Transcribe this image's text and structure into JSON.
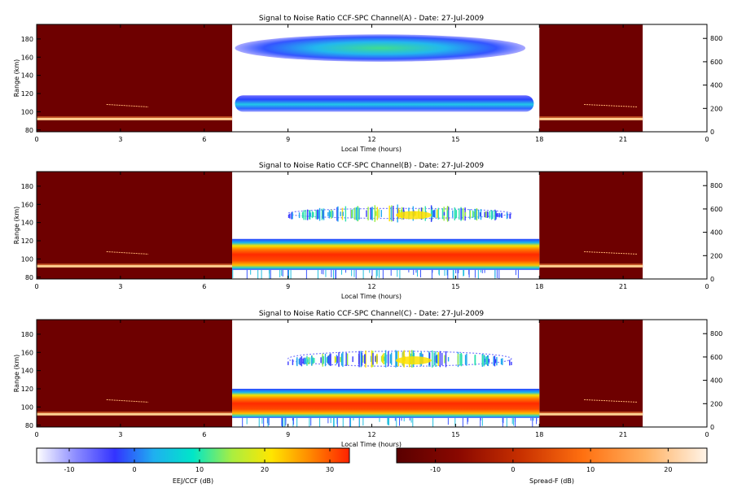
{
  "chart_data": [
    {
      "type": "heatmap",
      "title": "Signal to Noise Ratio CCF-SPC Channel(A) - Date: 27-Jul-2009",
      "xlabel": "Local Time (hours)",
      "ylabel": "Range (km)",
      "xlim": [
        0,
        24
      ],
      "ylim": [
        78,
        196
      ],
      "y2lim": [
        0,
        920
      ],
      "xticks": [
        "0",
        "3",
        "6",
        "9",
        "12",
        "15",
        "18",
        "21",
        "0"
      ],
      "yticks": [
        "80",
        "100",
        "120",
        "140",
        "160",
        "180"
      ],
      "y2ticks": [
        "0",
        "200",
        "400",
        "600",
        "800"
      ],
      "spreadF_night_windows_hours": [
        [
          0,
          7
        ],
        [
          18,
          21.7
        ]
      ],
      "eej_window_hours": [
        7,
        18
      ],
      "night_trace_range_km": [
        92,
        108
      ],
      "layers": [
        {
          "range_km": [
            100,
            118
          ],
          "time_hours": [
            7.1,
            17.8
          ],
          "snr_db": [
            -14,
            10
          ],
          "peak_time_hours": 12.5
        },
        {
          "range_km": [
            155,
            185
          ],
          "time_hours": [
            7.1,
            17.5
          ],
          "snr_db": [
            -14,
            8
          ],
          "peak_time_hours": 12.5
        }
      ]
    },
    {
      "type": "heatmap",
      "title": "Signal to Noise Ratio CCF-SPC Channel(B) - Date: 27-Jul-2009",
      "xlabel": "Local Time (hours)",
      "ylabel": "Range (km)",
      "xlim": [
        0,
        24
      ],
      "ylim": [
        78,
        196
      ],
      "y2lim": [
        0,
        920
      ],
      "xticks": [
        "0",
        "3",
        "6",
        "9",
        "12",
        "15",
        "18",
        "21",
        "0"
      ],
      "yticks": [
        "80",
        "100",
        "120",
        "140",
        "160",
        "180"
      ],
      "y2ticks": [
        "0",
        "200",
        "400",
        "600",
        "800"
      ],
      "spreadF_night_windows_hours": [
        [
          0,
          7
        ],
        [
          18,
          21.7
        ]
      ],
      "eej_window_hours": [
        7,
        18
      ],
      "night_trace_range_km": [
        92,
        108
      ],
      "layers": [
        {
          "range_km": [
            88,
            122
          ],
          "time_hours": [
            7.0,
            18.0
          ],
          "snr_db": [
            -2,
            32
          ],
          "peak_time_hours": 12.5
        },
        {
          "range_km": [
            140,
            160
          ],
          "time_hours": [
            9.0,
            17.0
          ],
          "snr_db": [
            -14,
            20
          ],
          "peak_time_hours": 13.5
        }
      ]
    },
    {
      "type": "heatmap",
      "title": "Signal to Noise Ratio CCF-SPC Channel(C) - Date: 27-Jul-2009",
      "xlabel": "Local Time (hours)",
      "ylabel": "Range (km)",
      "xlim": [
        0,
        24
      ],
      "ylim": [
        78,
        196
      ],
      "y2lim": [
        0,
        920
      ],
      "xticks": [
        "0",
        "3",
        "6",
        "9",
        "12",
        "15",
        "18",
        "21",
        "0"
      ],
      "yticks": [
        "80",
        "100",
        "120",
        "140",
        "160",
        "180"
      ],
      "y2ticks": [
        "0",
        "200",
        "400",
        "600",
        "800"
      ],
      "spreadF_night_windows_hours": [
        [
          0,
          7
        ],
        [
          18,
          21.7
        ]
      ],
      "eej_window_hours": [
        7,
        18
      ],
      "night_trace_range_km": [
        92,
        108
      ],
      "layers": [
        {
          "range_km": [
            88,
            120
          ],
          "time_hours": [
            7.0,
            18.0
          ],
          "snr_db": [
            -2,
            30
          ],
          "peak_time_hours": 12.5
        },
        {
          "range_km": [
            138,
            168
          ],
          "time_hours": [
            9.0,
            17.0
          ],
          "snr_db": [
            -14,
            18
          ],
          "peak_time_hours": 13.5
        }
      ]
    }
  ],
  "colorbars": [
    {
      "label": "EEJ/CCF (dB)",
      "ticks": [
        "-10",
        "0",
        "10",
        "20",
        "30"
      ],
      "range_db": [
        -15,
        33
      ],
      "tick_values": [
        -10,
        0,
        10,
        20,
        30
      ],
      "stops": [
        "#ffffff",
        "#8c8cff",
        "#3333ff",
        "#1fb0f0",
        "#00e6c8",
        "#aaee40",
        "#ffe600",
        "#ff8800",
        "#ff2200"
      ]
    },
    {
      "label": "Spread-F (dB)",
      "ticks": [
        "-10",
        "0",
        "10",
        "20"
      ],
      "range_db": [
        -15,
        25
      ],
      "tick_values": [
        -10,
        0,
        10,
        20
      ],
      "stops": [
        "#5a0000",
        "#8a0800",
        "#c83000",
        "#ff7010",
        "#ffb060",
        "#fff4e8"
      ]
    }
  ],
  "colors": {
    "night_bg": "#6e0000",
    "night_trace": "#ffd090",
    "frame": "#000000"
  }
}
